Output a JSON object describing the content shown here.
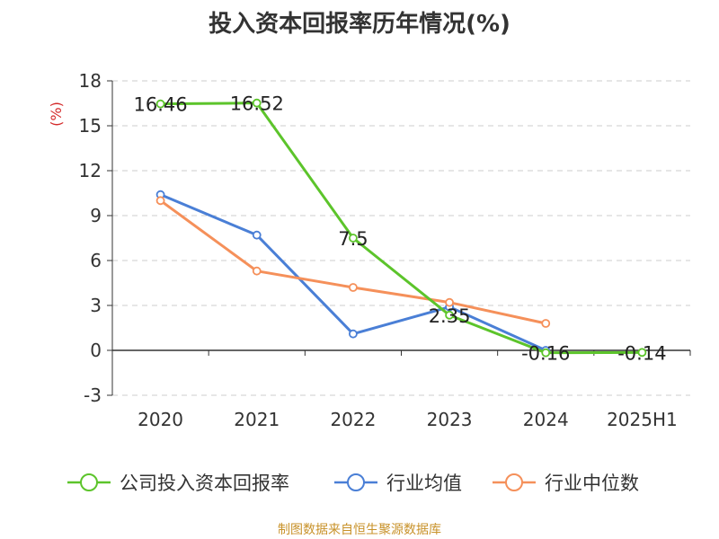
{
  "chart_data": {
    "type": "line",
    "title": "投入资本回报率历年情况(%)",
    "ylabel": "(%)",
    "xlabel": "",
    "categories": [
      "2020",
      "2021",
      "2022",
      "2023",
      "2024",
      "2025H1"
    ],
    "ylim": [
      -3,
      18
    ],
    "yticks": [
      -3,
      0,
      3,
      6,
      9,
      12,
      15,
      18
    ],
    "grid": true,
    "legend_position": "bottom",
    "series": [
      {
        "name": "公司投入资本回报率",
        "color": "#5cc42b",
        "values": [
          16.46,
          16.52,
          7.5,
          2.35,
          -0.16,
          -0.14
        ],
        "labels": [
          "16.46",
          "16.52",
          "7.5",
          "2.35",
          "-0.16",
          "-0.14"
        ]
      },
      {
        "name": "行业均值",
        "color": "#4a7fd6",
        "values": [
          10.4,
          7.7,
          1.1,
          2.9,
          0.0,
          null
        ]
      },
      {
        "name": "行业中位数",
        "color": "#f5905a",
        "values": [
          10.0,
          5.3,
          4.2,
          3.2,
          1.8,
          null
        ]
      }
    ]
  },
  "source": "制图数据来自恒生聚源数据库"
}
